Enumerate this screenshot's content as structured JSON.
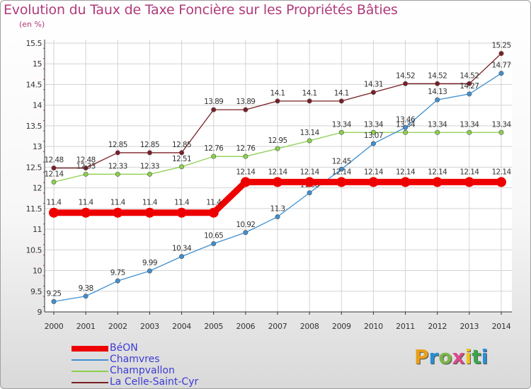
{
  "header": {
    "title": "Evolution du Taux de Taxe Foncière sur les Propriétés Bâties",
    "unit": "(en %)"
  },
  "logo": {
    "text": "Proxiti",
    "colors": [
      "#e8a019",
      "#2a8fd6",
      "#7ab648",
      "#d94a8c",
      "#f0c020",
      "#3aa64c",
      "#2a8fd6"
    ]
  },
  "chart_data": {
    "type": "line",
    "title": "Evolution du Taux de Taxe Foncière sur les Propriétés Bâties",
    "ylabel": "(en %)",
    "xlabel": "",
    "categories": [
      "2000",
      "2001",
      "2002",
      "2003",
      "2004",
      "2005",
      "2006",
      "2007",
      "2008",
      "2009",
      "2010",
      "2011",
      "2012",
      "2013",
      "2014"
    ],
    "ylim": [
      9,
      15.5
    ],
    "yticks": [
      "9",
      "9.5",
      "10",
      "10.5",
      "11",
      "11.5",
      "12",
      "12.5",
      "13",
      "13.5",
      "14",
      "14.5",
      "15",
      "15.5"
    ],
    "grid": true,
    "legend_position": "bottom-left",
    "series": [
      {
        "name": "La Celle-Saint-Cyr",
        "color": "#7a1f24",
        "weight": "thin",
        "values": [
          12.48,
          12.48,
          12.85,
          12.85,
          12.85,
          13.89,
          13.89,
          14.1,
          14.1,
          14.1,
          14.31,
          14.52,
          14.52,
          14.52,
          15.25
        ],
        "labels": [
          "12.48",
          "12.48",
          "12.85",
          "12.85",
          "12.85",
          "13.89",
          "13.89",
          "14.1",
          "14.1",
          "14.1",
          "14.31",
          "14.52",
          "14.52",
          "14.52",
          "15.25"
        ]
      },
      {
        "name": "Champvallon",
        "color": "#8ccf4d",
        "weight": "thin",
        "values": [
          12.14,
          12.33,
          12.33,
          12.33,
          12.51,
          12.76,
          12.76,
          12.95,
          13.14,
          13.34,
          13.34,
          13.34,
          13.34,
          13.34,
          13.34
        ],
        "labels": [
          "12.14",
          "12.33",
          "12.33",
          "12.33",
          "12.51",
          "12.76",
          "12.76",
          "12.95",
          "13.14",
          "13.34",
          "13.34",
          "13.34",
          "13.34",
          "13.34",
          "13.34"
        ]
      },
      {
        "name": "Chamvres",
        "color": "#3f8fd0",
        "weight": "thin",
        "values": [
          9.25,
          9.38,
          9.75,
          9.99,
          10.34,
          10.65,
          10.92,
          11.3,
          11.88,
          12.45,
          13.07,
          13.46,
          14.13,
          14.27,
          14.77
        ],
        "labels": [
          "9.25",
          "9.38",
          "9.75",
          "9.99",
          "10.34",
          "10.65",
          "10.92",
          "11.3",
          "11.88",
          "12.45",
          "13.07",
          "13.46",
          "14.13",
          "14.27",
          "14.77"
        ]
      },
      {
        "name": "BéON",
        "color": "#ee0000",
        "weight": "thick",
        "values": [
          11.4,
          11.4,
          11.4,
          11.4,
          11.4,
          11.4,
          12.14,
          12.14,
          12.14,
          12.14,
          12.14,
          12.14,
          12.14,
          12.14,
          12.14
        ],
        "labels": [
          "11.4",
          "11.4",
          "11.4",
          "11.4",
          "11.4",
          "11.4",
          "12.14",
          "12.14",
          "12.14",
          "12.14",
          "12.14",
          "12.14",
          "12.14",
          "12.14",
          "12.14"
        ]
      }
    ],
    "legend": [
      "BéON",
      "Chamvres",
      "Champvallon",
      "La Celle-Saint-Cyr"
    ]
  }
}
